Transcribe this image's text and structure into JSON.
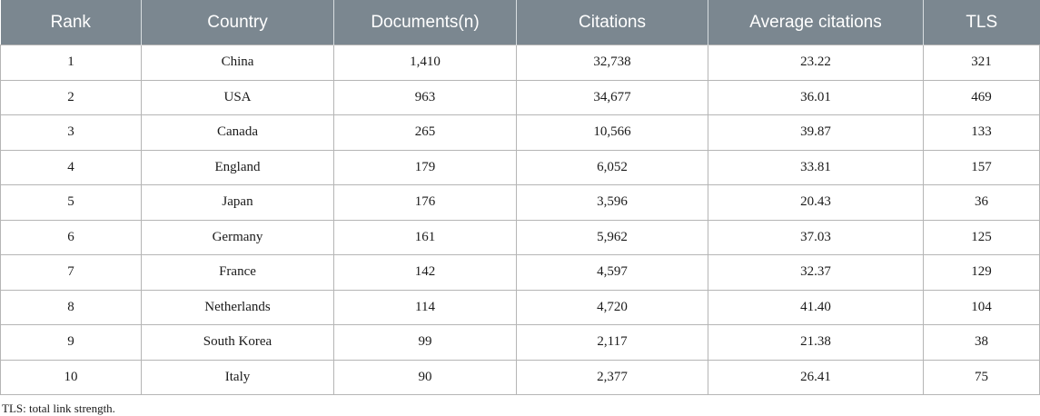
{
  "table": {
    "headers": [
      "Rank",
      "Country",
      "Documents(n)",
      "Citations",
      "Average citations",
      "TLS"
    ],
    "rows": [
      [
        "1",
        "China",
        "1,410",
        "32,738",
        "23.22",
        "321"
      ],
      [
        "2",
        "USA",
        "963",
        "34,677",
        "36.01",
        "469"
      ],
      [
        "3",
        "Canada",
        "265",
        "10,566",
        "39.87",
        "133"
      ],
      [
        "4",
        "England",
        "179",
        "6,052",
        "33.81",
        "157"
      ],
      [
        "5",
        "Japan",
        "176",
        "3,596",
        "20.43",
        "36"
      ],
      [
        "6",
        "Germany",
        "161",
        "5,962",
        "37.03",
        "125"
      ],
      [
        "7",
        "France",
        "142",
        "4,597",
        "32.37",
        "129"
      ],
      [
        "8",
        "Netherlands",
        "114",
        "4,720",
        "41.40",
        "104"
      ],
      [
        "9",
        "South Korea",
        "99",
        "2,117",
        "21.38",
        "38"
      ],
      [
        "10",
        "Italy",
        "90",
        "2,377",
        "26.41",
        "75"
      ]
    ]
  },
  "footnote": "TLS: total link strength.",
  "colors": {
    "header_background": "#7b8790",
    "header_text": "#ffffff",
    "grid_line": "#b5b5b5"
  }
}
